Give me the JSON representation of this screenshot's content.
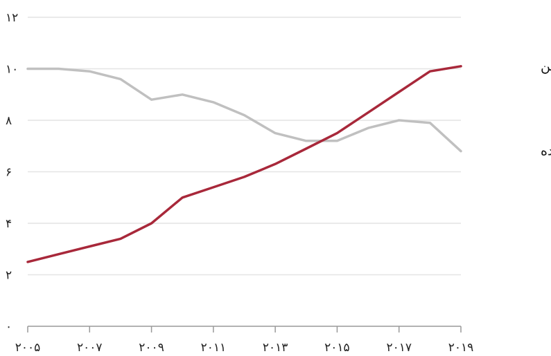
{
  "chart_data": {
    "type": "line",
    "title": "",
    "xlabel": "",
    "ylabel": "",
    "xlim": [
      2005,
      2019
    ],
    "ylim": [
      0,
      12
    ],
    "y_ticks": [
      {
        "value": 0,
        "label": "۰"
      },
      {
        "value": 2,
        "label": "۲"
      },
      {
        "value": 4,
        "label": "۴"
      },
      {
        "value": 6,
        "label": "۶"
      },
      {
        "value": 8,
        "label": "۸"
      },
      {
        "value": 10,
        "label": "۱۰"
      },
      {
        "value": 12,
        "label": "۱۲"
      }
    ],
    "x_ticks": [
      {
        "value": 2005,
        "label": "۲۰۰۵"
      },
      {
        "value": 2007,
        "label": "۲۰۰۷"
      },
      {
        "value": 2009,
        "label": "۲۰۰۹"
      },
      {
        "value": 2011,
        "label": "۲۰۱۱"
      },
      {
        "value": 2013,
        "label": "۲۰۱۳"
      },
      {
        "value": 2015,
        "label": "۲۰۱۵"
      },
      {
        "value": 2017,
        "label": "۲۰۱۷"
      },
      {
        "value": 2019,
        "label": "۲۰۱۹"
      }
    ],
    "grid": true,
    "series": [
      {
        "name": "چین",
        "color": "#a8283a",
        "x": [
          2005,
          2006,
          2007,
          2008,
          2009,
          2010,
          2011,
          2012,
          2013,
          2014,
          2015,
          2016,
          2017,
          2018,
          2019
        ],
        "values": [
          2.5,
          2.8,
          3.1,
          3.4,
          4.0,
          5.0,
          5.4,
          5.8,
          6.3,
          6.9,
          7.5,
          8.3,
          9.1,
          9.9,
          10.1
        ]
      },
      {
        "name": "ایالات متحده",
        "color": "#c0c0c0",
        "x": [
          2005,
          2006,
          2007,
          2008,
          2009,
          2010,
          2011,
          2012,
          2013,
          2014,
          2015,
          2016,
          2017,
          2018,
          2019
        ],
        "values": [
          10.0,
          10.0,
          9.9,
          9.6,
          8.8,
          9.0,
          8.7,
          8.2,
          7.5,
          7.2,
          7.2,
          7.7,
          8.0,
          7.9,
          6.8
        ]
      }
    ]
  }
}
